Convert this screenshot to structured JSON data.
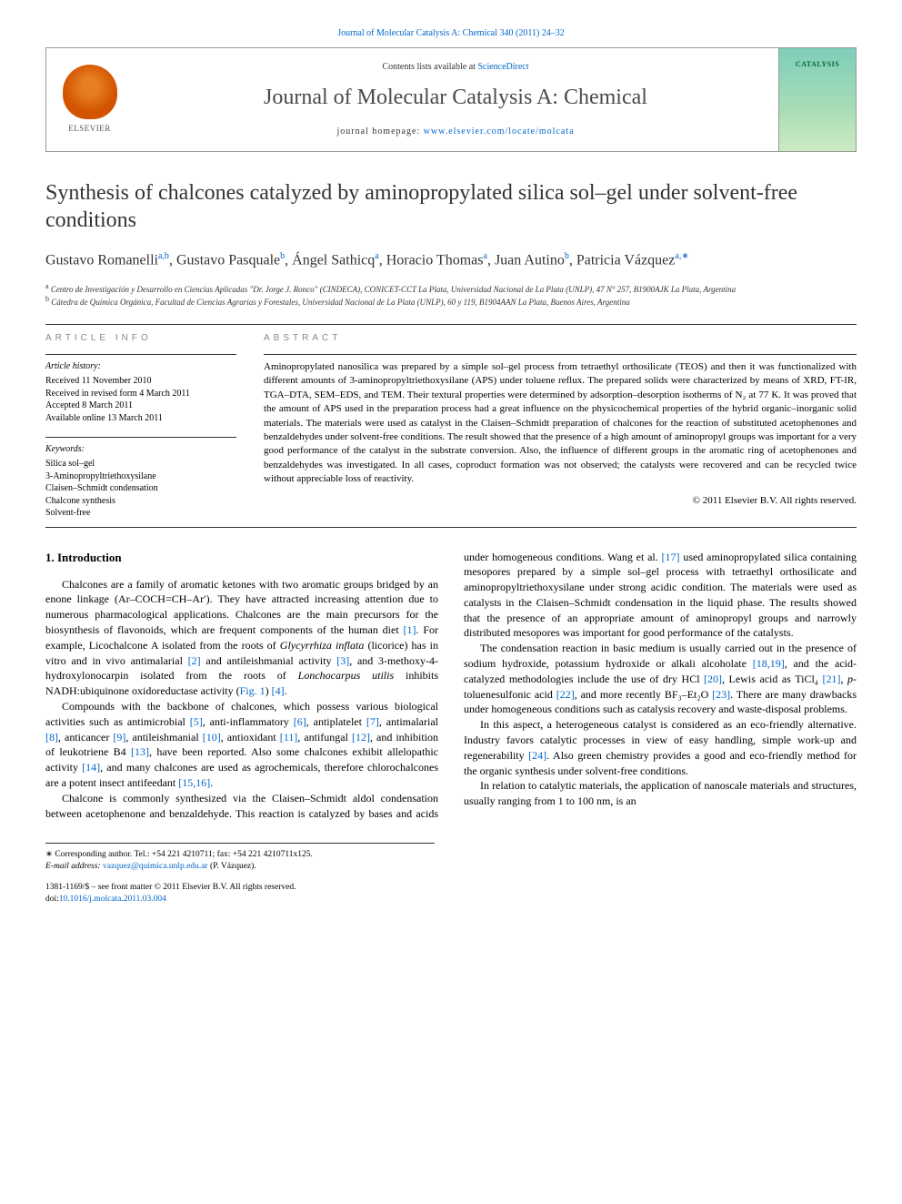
{
  "journal_ref_line_prefix": "Journal of Molecular Catalysis A: Chemical 340 (2011) 24–32",
  "header": {
    "contents_prefix": "Contents lists available at ",
    "contents_link": "ScienceDirect",
    "journal_title": "Journal of Molecular Catalysis A: Chemical",
    "homepage_prefix": "journal homepage: ",
    "homepage_url": "www.elsevier.com/locate/molcata",
    "publisher": "ELSEVIER",
    "cover_label": "CATALYSIS"
  },
  "article": {
    "title": "Synthesis of chalcones catalyzed by aminopropylated silica sol–gel under solvent-free conditions",
    "authors_html": "Gustavo Romanelli<sup>a,b</sup>, Gustavo Pasquale<sup>b</sup>, Ángel Sathicq<sup>a</sup>, Horacio Thomas<sup>a</sup>, Juan Autino<sup>b</sup>, Patricia Vázquez<sup>a,∗</sup>",
    "affiliations": {
      "a": "Centro de Investigación y Desarrollo en Ciencias Aplicadas \"Dr. Jorge J. Ronco\" (CINDECA), CONICET-CCT La Plata, Universidad Nacional de La Plata (UNLP), 47 N° 257, B1900AJK La Plata, Argentina",
      "b": "Cátedra de Química Orgánica, Facultad de Ciencias Agrarias y Forestales, Universidad Nacional de La Plata (UNLP), 60 y 119, B1904AAN La Plata, Buenos Aires, Argentina"
    }
  },
  "article_info": {
    "heading": "article info",
    "history_label": "Article history:",
    "history": [
      "Received 11 November 2010",
      "Received in revised form 4 March 2011",
      "Accepted 8 March 2011",
      "Available online 13 March 2011"
    ],
    "keywords_label": "Keywords:",
    "keywords": [
      "Silica sol–gel",
      "3-Aminopropyltriethoxysilane",
      "Claisen–Schmidt condensation",
      "Chalcone synthesis",
      "Solvent-free"
    ]
  },
  "abstract": {
    "heading": "abstract",
    "text": "Aminopropylated nanosilica was prepared by a simple sol–gel process from tetraethyl orthosilicate (TEOS) and then it was functionalized with different amounts of 3-aminopropyltriethoxysilane (APS) under toluene reflux. The prepared solids were characterized by means of XRD, FT-IR, TGA–DTA, SEM–EDS, and TEM. Their textural properties were determined by adsorption–desorption isotherms of N₂ at 77 K. It was proved that the amount of APS used in the preparation process had a great influence on the physicochemical properties of the hybrid organic–inorganic solid materials. The materials were used as catalyst in the Claisen–Schmidt preparation of chalcones for the reaction of substituted acetophenones and benzaldehydes under solvent-free conditions. The result showed that the presence of a high amount of aminopropyl groups was important for a very good performance of the catalyst in the substrate conversion. Also, the influence of different groups in the aromatic ring of acetophenones and benzaldehydes was investigated. In all cases, coproduct formation was not observed; the catalysts were recovered and can be recycled twice without appreciable loss of reactivity.",
    "copyright": "© 2011 Elsevier B.V. All rights reserved."
  },
  "body": {
    "section_heading": "1. Introduction",
    "paragraphs": [
      "Chalcones are a family of aromatic ketones with two aromatic groups bridged by an enone linkage (Ar–COCH=CH–Ar′). They have attracted increasing attention due to numerous pharmacological applications. Chalcones are the main precursors for the biosynthesis of flavonoids, which are frequent components of the human diet <span class=\"ref\">[1]</span>. For example, Licochalcone A isolated from the roots of <i>Glycyrrhiza inflata</i> (licorice) has in vitro and in vivo antimalarial <span class=\"ref\">[2]</span> and antileishmanial activity <span class=\"ref\">[3]</span>, and 3-methoxy-4-hydroxylonocarpin isolated from the roots of <i>Lonchocarpus utilis</i> inhibits NADH:ubiquinone oxidoreductase activity (<span class=\"ref\">Fig. 1</span>) <span class=\"ref\">[4]</span>.",
      "Compounds with the backbone of chalcones, which possess various biological activities such as antimicrobial <span class=\"ref\">[5]</span>, anti-inflammatory <span class=\"ref\">[6]</span>, antiplatelet <span class=\"ref\">[7]</span>, antimalarial <span class=\"ref\">[8]</span>, anticancer <span class=\"ref\">[9]</span>, antileishmanial <span class=\"ref\">[10]</span>, antioxidant <span class=\"ref\">[11]</span>, antifungal <span class=\"ref\">[12]</span>, and inhibition of leukotriene B4 <span class=\"ref\">[13]</span>, have been reported. Also some chalcones exhibit allelopathic activity <span class=\"ref\">[14]</span>, and many chalcones are used as agrochemicals, therefore chlorochalcones are a potent insect antifeedant <span class=\"ref\">[15,16]</span>.",
      "Chalcone is commonly synthesized via the Claisen–Schmidt aldol condensation between acetophenone and benzaldehyde. This reaction is catalyzed by bases and acids under homogeneous conditions. Wang et al. <span class=\"ref\">[17]</span> used aminopropylated silica containing mesopores prepared by a simple sol–gel process with tetraethyl orthosilicate and aminopropyltriethoxysilane under strong acidic condition. The materials were used as catalysts in the Claisen–Schmidt condensation in the liquid phase. The results showed that the presence of an appropriate amount of aminopropyl groups and narrowly distributed mesopores was important for good performance of the catalysts.",
      "The condensation reaction in basic medium is usually carried out in the presence of sodium hydroxide, potassium hydroxide or alkali alcoholate <span class=\"ref\">[18,19]</span>, and the acid-catalyzed methodologies include the use of dry HCl <span class=\"ref\">[20]</span>, Lewis acid as TiCl₄ <span class=\"ref\">[21]</span>, <i>p</i>-toluenesulfonic acid <span class=\"ref\">[22]</span>, and more recently BF₃–Et₂O <span class=\"ref\">[23]</span>. There are many drawbacks under homogeneous conditions such as catalysis recovery and waste-disposal problems.",
      "In this aspect, a heterogeneous catalyst is considered as an eco-friendly alternative. Industry favors catalytic processes in view of easy handling, simple work-up and regenerability <span class=\"ref\">[24]</span>. Also green chemistry provides a good and eco-friendly method for the organic synthesis under solvent-free conditions.",
      "In relation to catalytic materials, the application of nanoscale materials and structures, usually ranging from 1 to 100 nm, is an"
    ]
  },
  "footnotes": {
    "corresponding": "∗ Corresponding author. Tel.: +54 221 4210711; fax: +54 221 4210711x125.",
    "email_label": "E-mail address: ",
    "email": "vazquez@quimica.unlp.edu.ar",
    "email_person": " (P. Vázquez)."
  },
  "bottom": {
    "front_matter": "1381-1169/$ – see front matter © 2011 Elsevier B.V. All rights reserved.",
    "doi_label": "doi:",
    "doi": "10.1016/j.molcata.2011.03.004"
  },
  "colors": {
    "link": "#0066cc",
    "text": "#000000",
    "heading_gray": "#888888",
    "elsevier_orange": "#e67e22",
    "cover_green": "#7fcdbb"
  }
}
